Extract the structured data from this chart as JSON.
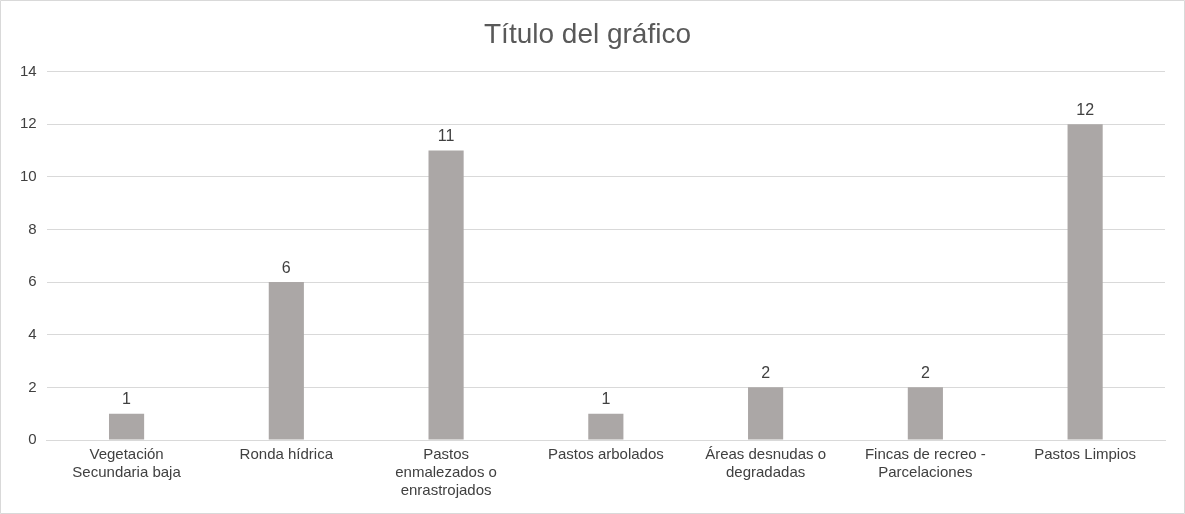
{
  "chart_data": {
    "type": "bar",
    "title": "Título del gráfico",
    "categories": [
      "Vegetación Secundaria baja",
      "Ronda hídrica",
      "Pastos enmalezados o enrastrojados",
      "Pastos arbolados",
      "Áreas desnudas o degradadas",
      "Fincas de recreo - Parcelaciones",
      "Pastos Limpios"
    ],
    "values": [
      1,
      6,
      11,
      1,
      2,
      2,
      12
    ],
    "color": "#aba7a6",
    "ylim": [
      0,
      14
    ],
    "yticks": [
      0,
      2,
      4,
      6,
      8,
      10,
      12,
      14
    ],
    "grid": "y",
    "data_labels": true,
    "legend": false
  }
}
